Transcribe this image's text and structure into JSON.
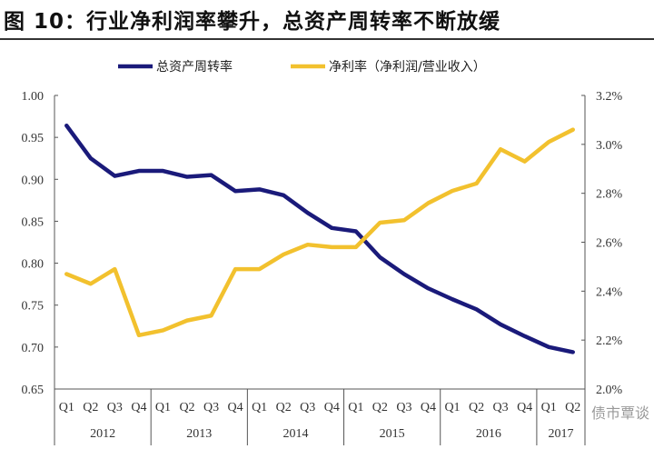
{
  "title": "图 10：行业净利润率攀升，总资产周转率不断放缓",
  "watermark": "债市覃谈",
  "chart_data": {
    "type": "line",
    "title": "图 10：行业净利润率攀升，总资产周转率不断放缓",
    "legend_position": "top",
    "grid": false,
    "quarters": [
      "Q1",
      "Q2",
      "Q3",
      "Q4",
      "Q1",
      "Q2",
      "Q3",
      "Q4",
      "Q1",
      "Q2",
      "Q3",
      "Q4",
      "Q1",
      "Q2",
      "Q3",
      "Q4",
      "Q1",
      "Q2",
      "Q3",
      "Q4",
      "Q1",
      "Q2"
    ],
    "years": [
      {
        "label": "2012",
        "count": 4
      },
      {
        "label": "2013",
        "count": 4
      },
      {
        "label": "2014",
        "count": 4
      },
      {
        "label": "2015",
        "count": 4
      },
      {
        "label": "2016",
        "count": 4
      },
      {
        "label": "2017",
        "count": 2
      }
    ],
    "left_axis": {
      "ylim": [
        0.65,
        1.0
      ],
      "ticks": [
        "0.65",
        "0.70",
        "0.75",
        "0.80",
        "0.85",
        "0.90",
        "0.95",
        "1.00"
      ]
    },
    "right_axis": {
      "ylim": [
        2.0,
        3.2
      ],
      "ticks": [
        "2.0%",
        "2.2%",
        "2.4%",
        "2.6%",
        "2.8%",
        "3.0%",
        "3.2%"
      ]
    },
    "series": [
      {
        "name": "总资产周转率",
        "axis": "left",
        "color": "#1a1a7a",
        "values": [
          0.964,
          0.925,
          0.904,
          0.91,
          0.91,
          0.903,
          0.905,
          0.886,
          0.888,
          0.881,
          0.86,
          0.842,
          0.838,
          0.807,
          0.787,
          0.77,
          0.757,
          0.745,
          0.727,
          0.713,
          0.7,
          0.694
        ]
      },
      {
        "name": "净利率（净利润/营业收入）",
        "axis": "right",
        "color": "#f2c12e",
        "values": [
          2.47,
          2.43,
          2.49,
          2.22,
          2.24,
          2.28,
          2.3,
          2.49,
          2.49,
          2.55,
          2.59,
          2.58,
          2.58,
          2.68,
          2.69,
          2.76,
          2.81,
          2.84,
          2.98,
          2.93,
          3.01,
          3.06
        ]
      }
    ]
  }
}
